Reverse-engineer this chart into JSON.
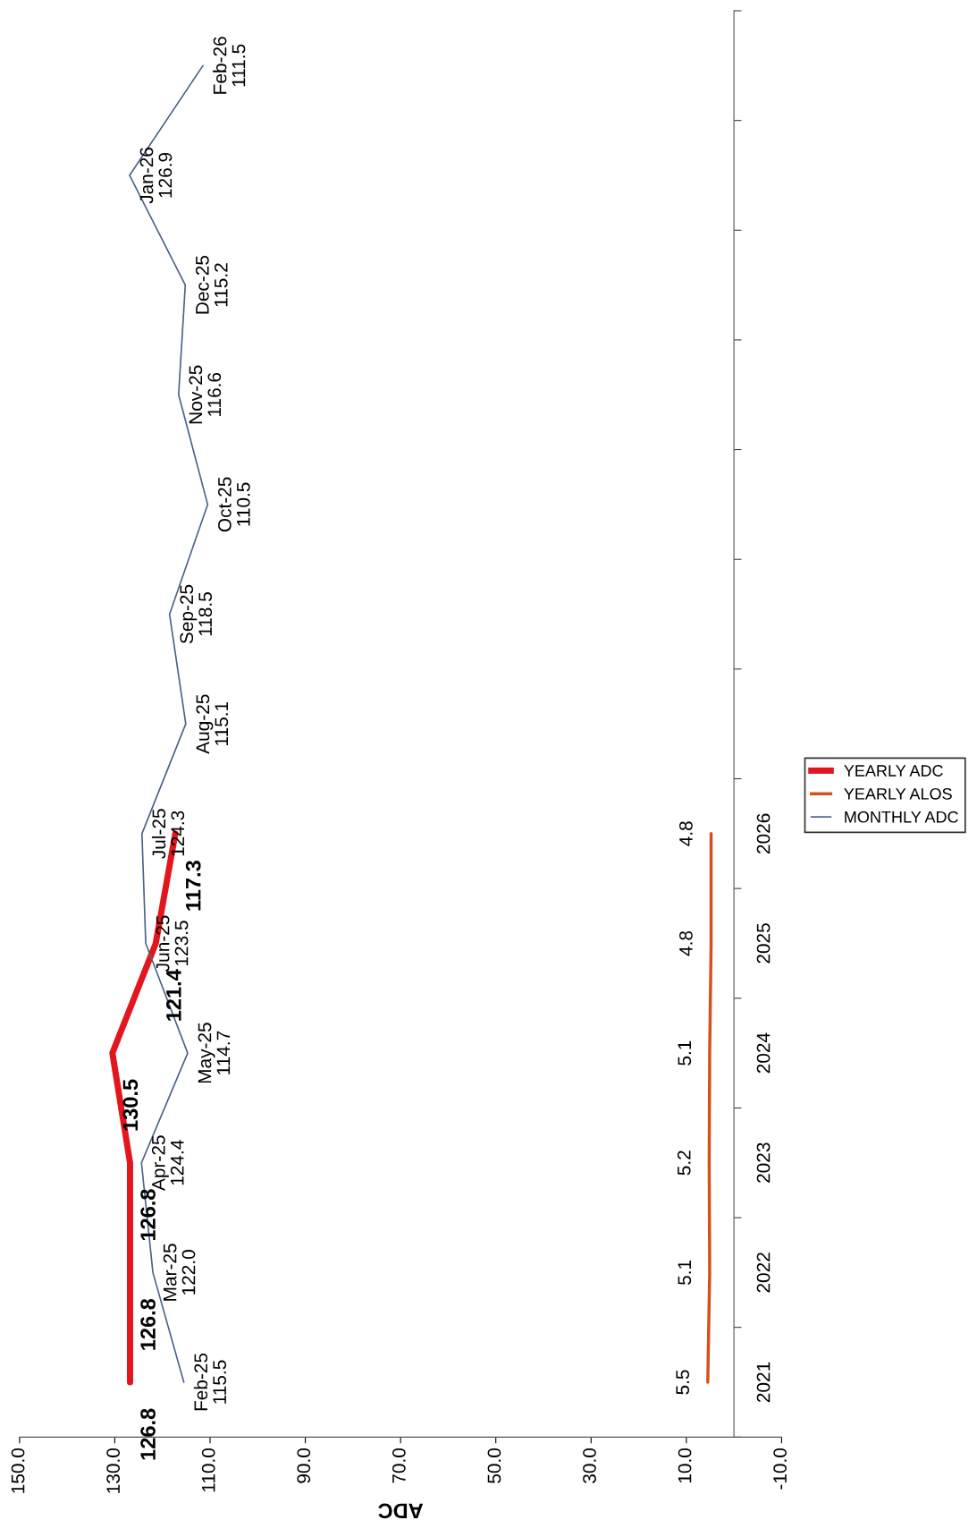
{
  "chart_data": {
    "type": "line",
    "orientation": "horizontal",
    "xlabel": "ADC",
    "categories": [
      null,
      null,
      null,
      null,
      null,
      null,
      null,
      "2026",
      "2025",
      "2024",
      "2023",
      "2022",
      "2021"
    ],
    "series": [
      {
        "name": "YEARLY ADC",
        "color": "#e3151d",
        "values": [
          null,
          null,
          null,
          null,
          null,
          null,
          null,
          117.3,
          121.4,
          130.5,
          126.8,
          126.8,
          126.8
        ],
        "value_labels": [
          null,
          null,
          null,
          null,
          null,
          null,
          null,
          "117.3",
          "121.4",
          "130.5",
          "126.8",
          "126.8",
          "126.8"
        ]
      },
      {
        "name": "YEARLY ALOS",
        "color": "#d5501e",
        "values": [
          null,
          null,
          null,
          null,
          null,
          null,
          null,
          4.8,
          4.8,
          5.1,
          5.2,
          5.1,
          5.5
        ],
        "value_labels": [
          null,
          null,
          null,
          null,
          null,
          null,
          null,
          "4.8",
          "4.8",
          "5.1",
          "5.2",
          "5.1",
          "5.5"
        ]
      },
      {
        "name": "MONTHLY ADC",
        "color": "#4a6488",
        "values": [
          111.5,
          126.9,
          115.2,
          116.6,
          110.5,
          118.5,
          115.1,
          124.3,
          123.5,
          114.7,
          124.4,
          122.0,
          115.5
        ],
        "value_labels": [
          "Feb-26\n111.5",
          "Jan-26\n126.9",
          "Dec-25\n115.2",
          "Nov-25\n116.6",
          "Oct-25\n110.5",
          "Sep-25\n118.5",
          "Aug-25\n115.1",
          "Jul-25\n124.3",
          "Jun-25\n123.5",
          "May-25\n114.7",
          "Apr-25\n124.4",
          "Mar-25\n122.0",
          "Feb-25\n115.5"
        ]
      }
    ],
    "xlim": [
      150,
      -10
    ],
    "xticks": [
      {
        "value": 150,
        "label": "150.0"
      },
      {
        "value": 130,
        "label": "130.0"
      },
      {
        "value": 110,
        "label": "110.0"
      },
      {
        "value": 90,
        "label": "90.0"
      },
      {
        "value": 70,
        "label": "70.0"
      },
      {
        "value": 50,
        "label": "50.0"
      },
      {
        "value": 30,
        "label": "30.0"
      },
      {
        "value": 10,
        "label": "10.0"
      },
      {
        "value": -10,
        "label": "-10.0"
      }
    ],
    "legend": "right"
  }
}
